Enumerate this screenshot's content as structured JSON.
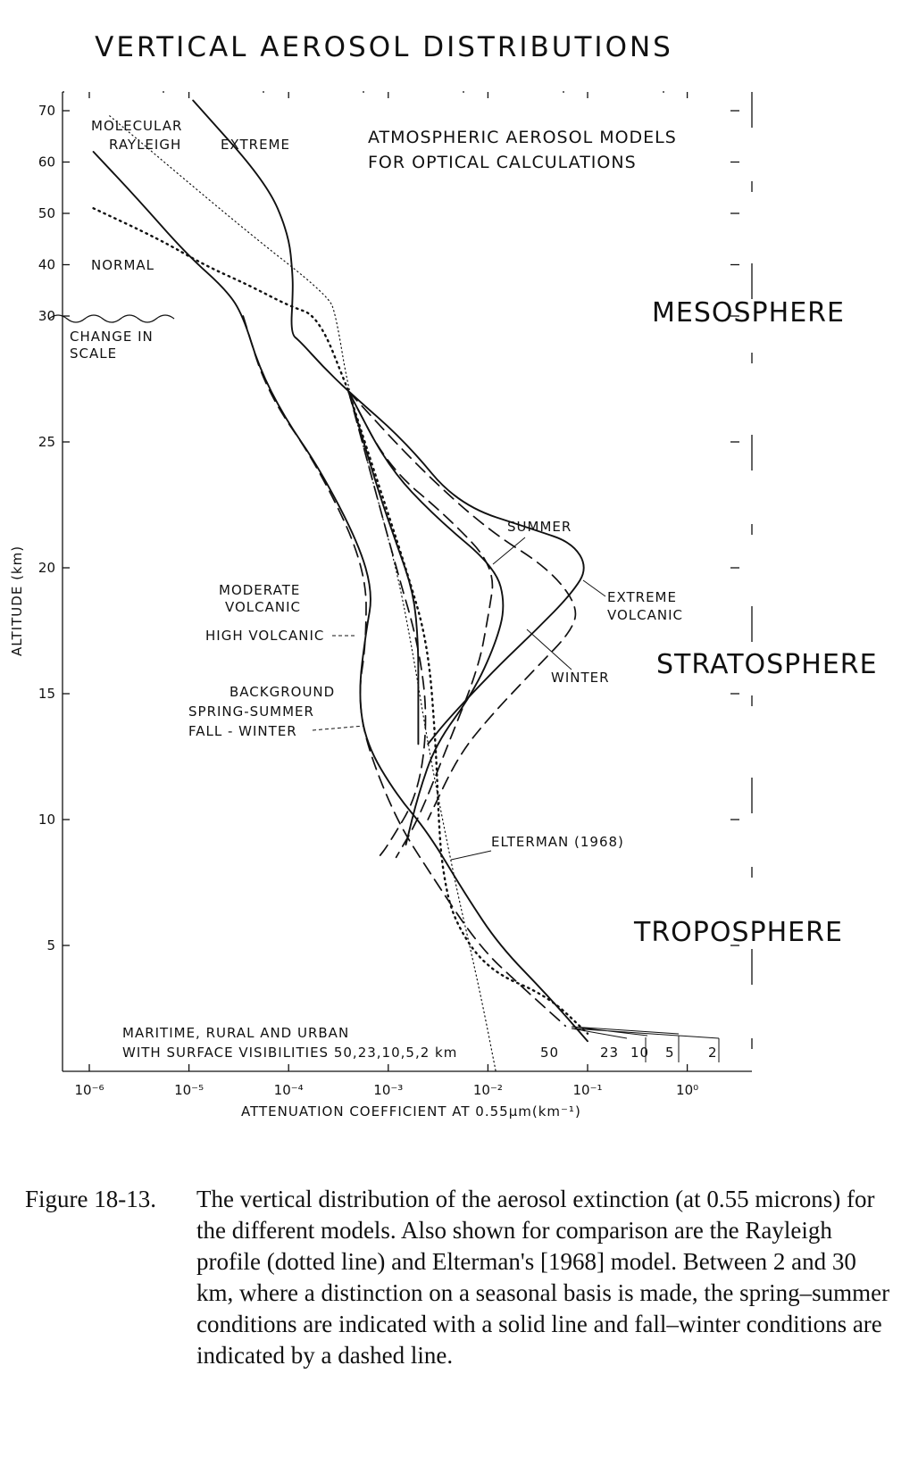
{
  "title": "VERTICAL AEROSOL DISTRIBUTIONS",
  "caption": {
    "label": "Figure 18-13.",
    "text": "The vertical distribution of the aerosol extinction (at 0.55 microns) for the different models. Also shown for comparison are the Rayleigh profile (dotted line) and Elterman's [1968] model. Between 2 and 30 km, where a distinction on a seasonal basis is made, the spring–summer conditions are indicated with a solid line and fall–winter conditions are indicated by a dashed line."
  },
  "annotations": {
    "models_note_1": "ATMOSPHERIC AEROSOL MODELS",
    "models_note_2": "FOR OPTICAL CALCULATIONS",
    "mesosphere": "MESOSPHERE",
    "stratosphere": "STRATOSPHERE",
    "troposphere": "TROPOSPHERE",
    "molecular_1": "MOLECULAR",
    "molecular_2": "RAYLEIGH",
    "extreme": "EXTREME",
    "normal": "NORMAL",
    "change_scale_1": "CHANGE IN",
    "change_scale_2": "SCALE",
    "summer": "SUMMER",
    "winter": "WINTER",
    "extreme_volcanic_1": "EXTREME",
    "extreme_volcanic_2": "VOLCANIC",
    "moderate_volcanic_1": "MODERATE",
    "moderate_volcanic_2": "VOLCANIC",
    "high_volcanic": "HIGH VOLCANIC",
    "background_1": "BACKGROUND",
    "background_2": "SPRING-SUMMER",
    "background_3": "FALL - WINTER",
    "elterman": "ELTERMAN (1968)",
    "surface_1": "MARITIME, RURAL AND URBAN",
    "surface_2": "WITH SURFACE VISIBILITIES 50,23,10,5,2 km",
    "vis_50": "50",
    "vis_23": "23",
    "vis_10": "10",
    "vis_5": "5",
    "vis_2": "2"
  },
  "chart_data": {
    "type": "line",
    "title": "VERTICAL AEROSOL DISTRIBUTIONS",
    "xlabel": "ATTENUATION COEFFICIENT AT 0.55µm(km⁻¹)",
    "ylabel": "ALTITUDE (km)",
    "x_scale": "log",
    "xlim": [
      1e-06,
      1
    ],
    "x_ticks": [
      {
        "value": 1e-06,
        "label": "10⁻⁶"
      },
      {
        "value": 1e-05,
        "label": "10⁻⁵"
      },
      {
        "value": 0.0001,
        "label": "10⁻⁴"
      },
      {
        "value": 0.001,
        "label": "10⁻³"
      },
      {
        "value": 0.01,
        "label": "10⁻²"
      },
      {
        "value": 0.1,
        "label": "10⁻¹"
      },
      {
        "value": 1,
        "label": "10⁰"
      }
    ],
    "y_ticks": [
      {
        "value": 5,
        "label": "5"
      },
      {
        "value": 10,
        "label": "10"
      },
      {
        "value": 15,
        "label": "15"
      },
      {
        "value": 20,
        "label": "20"
      },
      {
        "value": 25,
        "label": "25"
      },
      {
        "value": 30,
        "label": "30"
      },
      {
        "value": 40,
        "label": "40"
      },
      {
        "value": 50,
        "label": "50"
      },
      {
        "value": 60,
        "label": "60"
      },
      {
        "value": 70,
        "label": "70"
      }
    ],
    "y_scale_note": "linear 0-30 km, compressed 30-70 km (change in scale at 30 km)",
    "grid": false,
    "series": [
      {
        "name": "MOLECULAR RAYLEIGH",
        "style": "dotted-fine",
        "points": [
          [
            1.6e-06,
            69
          ],
          [
            3.5e-05,
            47
          ],
          [
            0.00025,
            34
          ],
          [
            0.0003,
            30
          ],
          [
            0.0004,
            27
          ],
          [
            0.00075,
            23
          ],
          [
            0.0012,
            20
          ],
          [
            0.0017,
            17
          ],
          [
            0.0025,
            13
          ],
          [
            0.0035,
            10
          ],
          [
            0.005,
            7
          ],
          [
            0.007,
            4.5
          ],
          [
            0.009,
            2.5
          ],
          [
            0.012,
            0
          ]
        ]
      },
      {
        "name": "EXTREME",
        "style": "solid",
        "points": [
          [
            1.1e-05,
            72
          ],
          [
            6e-05,
            56
          ],
          [
            0.0001,
            46
          ],
          [
            0.00011,
            38
          ],
          [
            0.00011,
            34
          ],
          [
            0.000105,
            29.3
          ],
          [
            0.00013,
            29
          ],
          [
            0.00022,
            28
          ],
          [
            0.0004,
            27
          ],
          [
            0.0015,
            25
          ],
          [
            0.005,
            22.5
          ],
          [
            0.03,
            21.5
          ],
          [
            0.07,
            21
          ],
          [
            0.1,
            20
          ],
          [
            0.07,
            19
          ],
          [
            0.03,
            17.5
          ],
          [
            0.012,
            16
          ],
          [
            0.004,
            14
          ],
          [
            0.0025,
            13
          ]
        ]
      },
      {
        "name": "NORMAL",
        "style": "solid",
        "points": [
          [
            1.1e-06,
            62
          ],
          [
            3e-06,
            53
          ],
          [
            9.5e-06,
            42
          ],
          [
            2.4e-05,
            35
          ],
          [
            3.5e-05,
            30
          ],
          [
            5e-05,
            28
          ],
          [
            9e-05,
            26
          ],
          [
            0.0002,
            24
          ],
          [
            0.0005,
            21
          ],
          [
            0.0007,
            19
          ],
          [
            0.0006,
            17.5
          ],
          [
            0.0005,
            15
          ],
          [
            0.0006,
            13
          ],
          [
            0.0012,
            11
          ],
          [
            0.0025,
            9.5
          ],
          [
            0.006,
            7
          ],
          [
            0.013,
            5
          ],
          [
            0.04,
            3
          ],
          [
            0.1,
            1.2
          ]
        ]
      },
      {
        "name": "NORMAL (dotted)",
        "style": "dotted",
        "points": [
          [
            1.1e-06,
            51
          ],
          [
            5e-06,
            45
          ],
          [
            1.4e-05,
            40
          ],
          [
            4e-05,
            36
          ],
          [
            0.0001,
            32
          ],
          [
            0.0002,
            30
          ],
          [
            0.0004,
            27
          ]
        ]
      },
      {
        "name": "ELTERMAN (1968)",
        "style": "dotted",
        "points": [
          [
            0.0004,
            27
          ],
          [
            0.0007,
            24
          ],
          [
            0.0015,
            20
          ],
          [
            0.0025,
            17
          ],
          [
            0.003,
            13
          ],
          [
            0.0032,
            10
          ],
          [
            0.0035,
            8
          ],
          [
            0.0045,
            6
          ],
          [
            0.01,
            4
          ],
          [
            0.04,
            3
          ],
          [
            0.1,
            1.5
          ]
        ]
      },
      {
        "name": "SUMMER",
        "style": "solid",
        "points": [
          [
            0.0004,
            27
          ],
          [
            0.001,
            24
          ],
          [
            0.003,
            22
          ],
          [
            0.012,
            20
          ],
          [
            0.015,
            18.5
          ],
          [
            0.012,
            17
          ],
          [
            0.007,
            15
          ],
          [
            0.003,
            13
          ],
          [
            0.002,
            11
          ],
          [
            0.0015,
            9
          ]
        ]
      },
      {
        "name": "WINTER",
        "style": "dashed",
        "points": [
          [
            0.0004,
            27
          ],
          [
            0.001,
            24
          ],
          [
            0.004,
            22
          ],
          [
            0.012,
            20
          ],
          [
            0.01,
            18
          ],
          [
            0.008,
            16
          ],
          [
            0.004,
            13
          ],
          [
            0.002,
            10
          ],
          [
            0.0012,
            8.5
          ]
        ]
      },
      {
        "name": "EXTREME VOLCANIC",
        "style": "dashed",
        "points": [
          [
            0.0004,
            27
          ],
          [
            0.002,
            24
          ],
          [
            0.01,
            21.5
          ],
          [
            0.04,
            20
          ],
          [
            0.08,
            18.5
          ],
          [
            0.07,
            17.5
          ],
          [
            0.03,
            16
          ],
          [
            0.01,
            14
          ],
          [
            0.005,
            12.5
          ],
          [
            0.0025,
            10
          ]
        ]
      },
      {
        "name": "MODERATE VOLCANIC",
        "style": "solid",
        "points": [
          [
            0.0004,
            27
          ],
          [
            0.0008,
            23
          ],
          [
            0.0012,
            21
          ],
          [
            0.0018,
            19
          ],
          [
            0.002,
            17
          ],
          [
            0.002,
            15
          ],
          [
            0.002,
            13
          ]
        ]
      },
      {
        "name": "HIGH VOLCANIC",
        "style": "dashed",
        "points": [
          [
            3.5e-05,
            30
          ],
          [
            6e-05,
            27
          ],
          [
            0.0002,
            24
          ],
          [
            0.0006,
            20
          ],
          [
            0.0006,
            17
          ],
          [
            0.0005,
            15
          ],
          [
            0.0006,
            13
          ],
          [
            0.0012,
            10
          ],
          [
            0.0025,
            8
          ],
          [
            0.008,
            5
          ],
          [
            0.02,
            3.5
          ],
          [
            0.06,
            1.8
          ]
        ]
      },
      {
        "name": "BACKGROUND FALL-WINTER",
        "style": "dashed",
        "points": [
          [
            0.0004,
            27
          ],
          [
            0.0012,
            20
          ],
          [
            0.002,
            17
          ],
          [
            0.0025,
            14
          ],
          [
            0.002,
            11
          ],
          [
            0.001,
            9
          ],
          [
            0.0008,
            8.5
          ]
        ]
      }
    ],
    "surface_visibilities_km": [
      50,
      23,
      10,
      5,
      2
    ]
  }
}
